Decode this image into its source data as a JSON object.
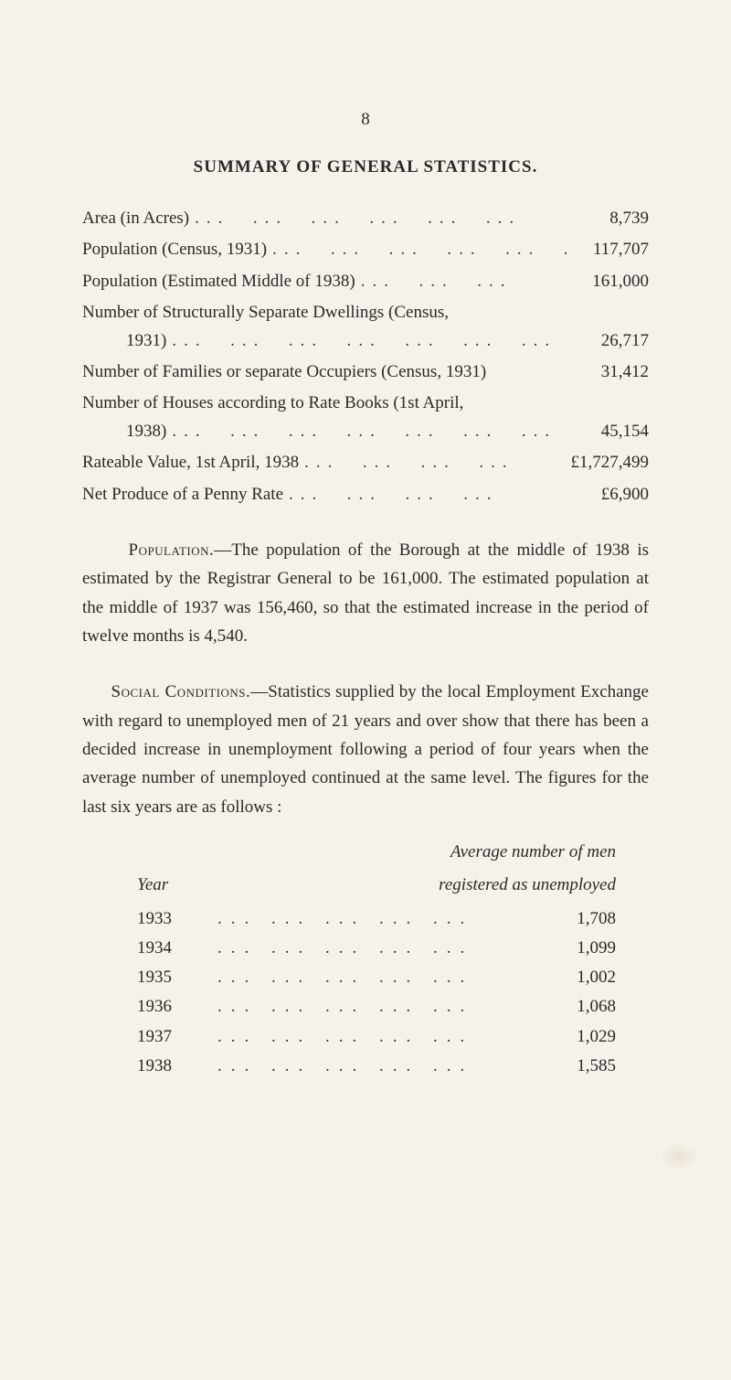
{
  "page_number": "8",
  "main_title": "SUMMARY OF GENERAL STATISTICS.",
  "stats": {
    "area_label": "Area (in Acres)",
    "area_value": "8,739",
    "pop_census_label": "Population (Census, 1931)",
    "pop_census_value": "117,707",
    "pop_est_label": "Population (Estimated Middle of 1938)",
    "pop_est_value": "161,000",
    "dwellings_line1": "Number of Structurally Separate Dwellings (Census,",
    "dwellings_line2": "1931)",
    "dwellings_value": "26,717",
    "families_label": "Number of Families or separate Occupiers (Census, 1931)",
    "families_value": "31,412",
    "houses_line1": "Number of Houses according to Rate Books (1st April,",
    "houses_line2": "1938)",
    "houses_value": "45,154",
    "rateable_label": "Rateable Value, 1st April, 1938",
    "rateable_value": "£1,727,499",
    "penny_label": "Net Produce of a Penny Rate",
    "penny_value": "£6,900"
  },
  "paragraphs": {
    "pop_lead": "Population.",
    "pop_body": "—The population of the Borough at the middle of 1938 is estimated by the Registrar General to be 161,000. The estimated population at the middle of 1937 was 156,460, so that the estimated increase in the period of twelve months is 4,540.",
    "soc_lead": "Social Conditions.",
    "soc_body": "—Statistics supplied by the local Employment Exchange with regard to unemployed men of 21 years and over show that there has been a decided increase in unemployment following a period of four years when the average number of unemployed continued at the same level. The figures for the last six years are as follows :"
  },
  "year_table": {
    "header_year": "Year",
    "header_avg_line1": "Average number of men",
    "header_avg_line2": "registered as unemployed",
    "rows": [
      {
        "year": "1933",
        "value": "1,708"
      },
      {
        "year": "1934",
        "value": "1,099"
      },
      {
        "year": "1935",
        "value": "1,002"
      },
      {
        "year": "1936",
        "value": "1,068"
      },
      {
        "year": "1937",
        "value": "1,029"
      },
      {
        "year": "1938",
        "value": "1,585"
      }
    ]
  },
  "dots_fill": "... ... ... ... ... ..."
}
